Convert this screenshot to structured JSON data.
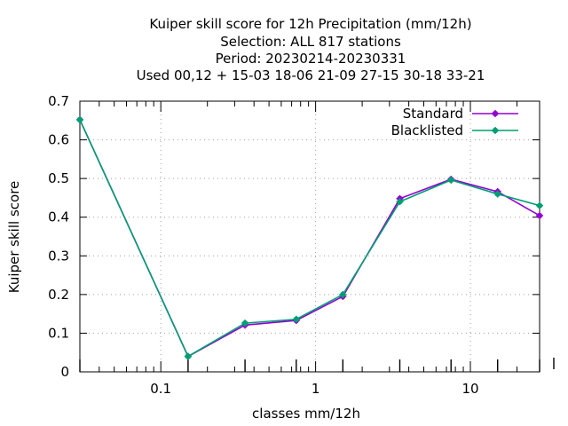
{
  "chart_data": {
    "type": "line",
    "title_lines": [
      "Kuiper skill score  for 12h Precipitation (mm/12h)",
      "Selection: ALL    817 stations",
      "Period: 20230214-20230331",
      "Used  00,12 + 15-03 18-06 21-09 27-15 30-18 33-21"
    ],
    "xlabel": "classes mm/12h",
    "ylabel": "Kuiper skill score",
    "x_scale": "log",
    "xlim": [
      0.03,
      28
    ],
    "ylim": [
      0,
      0.7
    ],
    "x_ticks": [
      {
        "value": 0.1,
        "label": "0.1"
      },
      {
        "value": 1,
        "label": "1"
      },
      {
        "value": 10,
        "label": "10"
      }
    ],
    "y_ticks": [
      {
        "value": 0,
        "label": "0"
      },
      {
        "value": 0.1,
        "label": "0.1"
      },
      {
        "value": 0.2,
        "label": "0.2"
      },
      {
        "value": 0.3,
        "label": "0.3"
      },
      {
        "value": 0.4,
        "label": "0.4"
      },
      {
        "value": 0.5,
        "label": "0.5"
      },
      {
        "value": 0.6,
        "label": "0.6"
      },
      {
        "value": 0.7,
        "label": "0.7"
      }
    ],
    "grid": true,
    "legend_position": "top-right",
    "x": [
      0.03,
      0.15,
      0.35,
      0.75,
      1.5,
      3.5,
      7.5,
      15,
      28
    ],
    "series": [
      {
        "name": "Standard",
        "color": "#9400d3",
        "values": [
          0.652,
          0.04,
          0.121,
          0.133,
          0.195,
          0.448,
          0.498,
          0.466,
          0.404
        ]
      },
      {
        "name": "Blacklisted",
        "color": "#009e73",
        "values": [
          0.652,
          0.04,
          0.126,
          0.136,
          0.2,
          0.44,
          0.496,
          0.46,
          0.43
        ]
      }
    ]
  }
}
